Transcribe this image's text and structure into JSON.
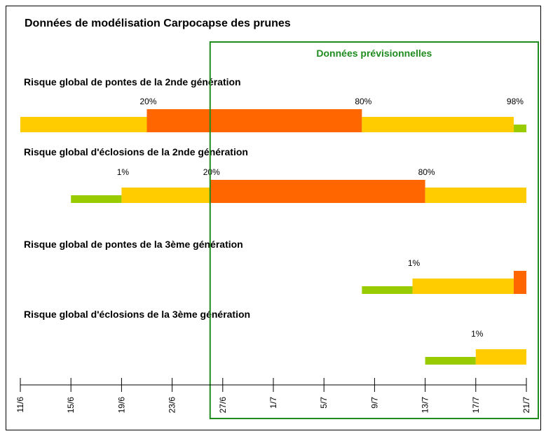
{
  "chart_data": {
    "type": "timeline",
    "title": "Données de modélisation Carpocapse des prunes",
    "forecast": {
      "label": "Données prévisionnelles",
      "start": 177,
      "color": "#1e8c1e"
    },
    "palette": [
      "#99cc00",
      "#ffcc00",
      "#ff6600"
    ],
    "xlim": [
      162,
      202
    ],
    "xticks": [
      {
        "value": 162,
        "label": "11/6"
      },
      {
        "value": 166,
        "label": "15/6"
      },
      {
        "value": 170,
        "label": "19/6"
      },
      {
        "value": 174,
        "label": "23/6"
      },
      {
        "value": 178,
        "label": "27/6"
      },
      {
        "value": 182,
        "label": "1/7"
      },
      {
        "value": 186,
        "label": "5/7"
      },
      {
        "value": 190,
        "label": "9/7"
      },
      {
        "value": 194,
        "label": "13/7"
      },
      {
        "value": 198,
        "label": "17/7"
      },
      {
        "value": 202,
        "label": "21/7"
      }
    ],
    "series": [
      {
        "name": "Risque global de pontes de la 2nde génération",
        "segments": [
          {
            "start": 162,
            "end": 172,
            "color": "#ffcc00"
          },
          {
            "start": 172,
            "end": 189,
            "color": "#ff6600"
          },
          {
            "start": 189,
            "end": 201,
            "color": "#ffcc00"
          },
          {
            "start": 201,
            "end": 202,
            "color": "#99cc00"
          }
        ],
        "thresholds": [
          {
            "x": 172,
            "label": "20%"
          },
          {
            "x": 189,
            "label": "80%"
          },
          {
            "x": 201,
            "label": "98%"
          }
        ]
      },
      {
        "name": "Risque global d'éclosions de la 2nde génération",
        "segments": [
          {
            "start": 166,
            "end": 170,
            "color": "#99cc00"
          },
          {
            "start": 170,
            "end": 177,
            "color": "#ffcc00"
          },
          {
            "start": 177,
            "end": 194,
            "color": "#ff6600"
          },
          {
            "start": 194,
            "end": 202,
            "color": "#ffcc00"
          }
        ],
        "thresholds": [
          {
            "x": 170,
            "label": "1%"
          },
          {
            "x": 177,
            "label": "20%"
          },
          {
            "x": 194,
            "label": "80%"
          }
        ]
      },
      {
        "name": "Risque global de pontes de la 3ème génération",
        "segments": [
          {
            "start": 189,
            "end": 193,
            "color": "#99cc00"
          },
          {
            "start": 193,
            "end": 201,
            "color": "#ffcc00"
          },
          {
            "start": 201,
            "end": 202,
            "color": "#ff6600"
          }
        ],
        "thresholds": [
          {
            "x": 193,
            "label": "1%"
          }
        ]
      },
      {
        "name": "Risque global d'éclosions de la 3ème génération",
        "segments": [
          {
            "start": 194,
            "end": 198,
            "color": "#99cc00"
          },
          {
            "start": 198,
            "end": 202,
            "color": "#ffcc00"
          }
        ],
        "thresholds": [
          {
            "x": 198,
            "label": "1%"
          }
        ]
      }
    ]
  }
}
